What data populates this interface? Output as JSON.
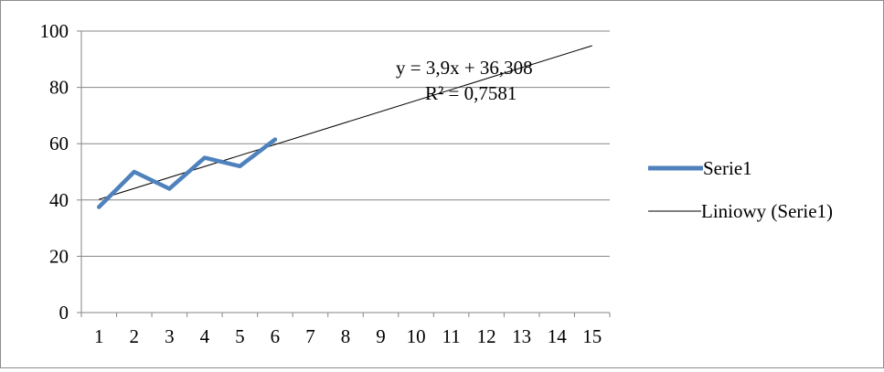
{
  "chart_data": {
    "type": "line",
    "title": "",
    "xlabel": "",
    "ylabel": "",
    "categories": [
      "1",
      "2",
      "3",
      "4",
      "5",
      "6",
      "7",
      "8",
      "9",
      "10",
      "11",
      "12",
      "13",
      "14",
      "15"
    ],
    "ylim": [
      0,
      100
    ],
    "yticks": [
      "0",
      "20",
      "40",
      "60",
      "80",
      "100"
    ],
    "grid": "horizontal",
    "legend_position": "right",
    "series": [
      {
        "name": "Serie1",
        "color": "#4f81bd",
        "x": [
          1,
          2,
          3,
          4,
          5,
          6
        ],
        "values": [
          37.5,
          50,
          44,
          55,
          52,
          61.5
        ]
      }
    ],
    "trendline": {
      "name": "Liniowy (Serie1)",
      "color": "#000000",
      "slope": 3.9,
      "intercept": 36.308,
      "x_range": [
        1,
        15
      ],
      "equation_label": "y = 3,9x + 36,308",
      "r2_label": "R² = 0,7581"
    }
  }
}
